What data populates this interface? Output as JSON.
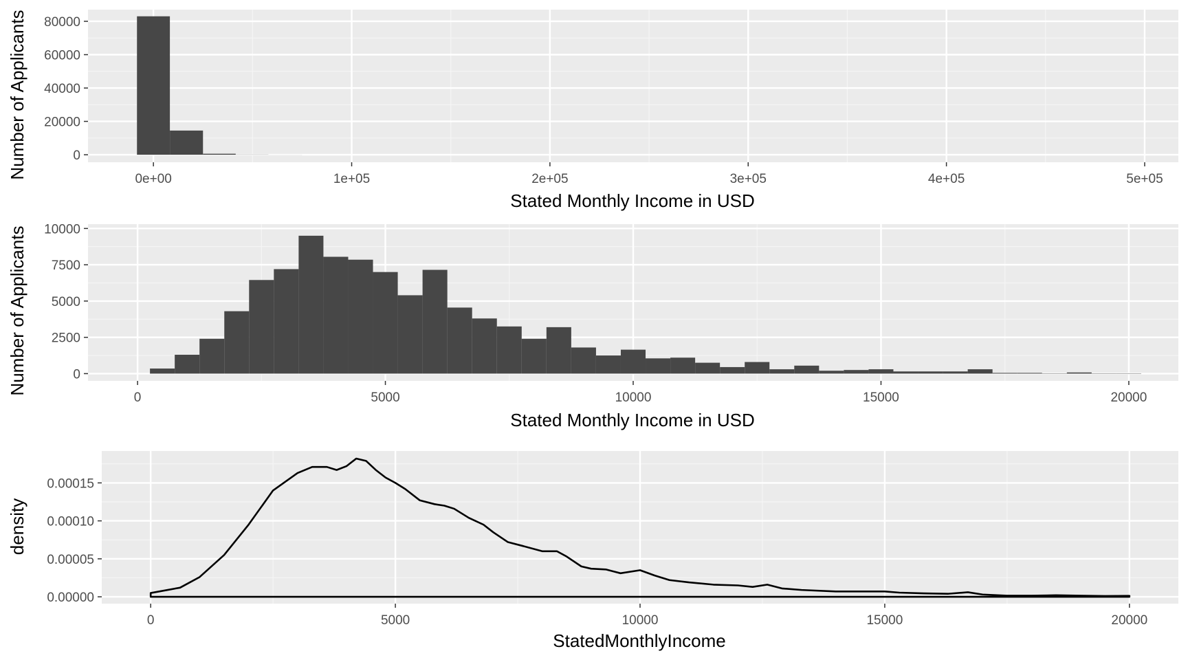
{
  "colors": {
    "panel": "#ebebeb",
    "grid_major": "#ffffff",
    "grid_minor": "#f5f5f5",
    "bar": "#474747",
    "line": "#000000",
    "tick_text": "#4d4d4d"
  },
  "chart_data": [
    {
      "type": "bar",
      "xlabel": "Stated Monthly Income in USD",
      "ylabel": "Number of Applicants",
      "xlim": [
        -33000,
        517000
      ],
      "ylim": [
        -4500,
        87000
      ],
      "x_ticks": [
        0,
        100000,
        200000,
        300000,
        400000,
        500000
      ],
      "x_tick_labels": [
        "0e+00",
        "1e+05",
        "2e+05",
        "3e+05",
        "4e+05",
        "5e+05"
      ],
      "y_ticks": [
        0,
        20000,
        40000,
        60000,
        80000
      ],
      "y_tick_labels": [
        "0",
        "20000",
        "40000",
        "60000",
        "80000"
      ],
      "bins": [
        {
          "x0": -8300,
          "x1": 8300,
          "value": 83000
        },
        {
          "x0": 8300,
          "x1": 25000,
          "value": 14500
        },
        {
          "x0": 25000,
          "x1": 41500,
          "value": 600
        },
        {
          "x0": 41500,
          "x1": 58000,
          "value": 100
        },
        {
          "x0": 58000,
          "x1": 75000,
          "value": 30
        }
      ]
    },
    {
      "type": "bar",
      "xlabel": "Stated Monthly Income in USD",
      "ylabel": "Number of Applicants",
      "xlim": [
        -1000,
        21000
      ],
      "ylim": [
        -500,
        10300
      ],
      "x_ticks": [
        0,
        5000,
        10000,
        15000,
        20000
      ],
      "x_tick_labels": [
        "0",
        "5000",
        "10000",
        "15000",
        "20000"
      ],
      "y_ticks": [
        0,
        2500,
        5000,
        7500,
        10000
      ],
      "y_tick_labels": [
        "0",
        "2500",
        "5000",
        "7500",
        "10000"
      ],
      "bin_start": 250,
      "bin_width": 500,
      "values": [
        350,
        1300,
        2400,
        4300,
        6450,
        7200,
        9500,
        8050,
        7850,
        7000,
        5400,
        7150,
        4550,
        3800,
        3250,
        2400,
        3200,
        1800,
        1250,
        1650,
        1050,
        1100,
        750,
        450,
        800,
        300,
        550,
        200,
        250,
        300,
        150,
        150,
        150,
        300,
        50,
        50,
        20,
        80,
        20,
        20
      ]
    },
    {
      "type": "area",
      "xlabel": "StatedMonthlyIncome",
      "ylabel": "density",
      "xlim": [
        -1000,
        21000
      ],
      "ylim": [
        -9e-06,
        0.000192
      ],
      "x_ticks": [
        0,
        5000,
        10000,
        15000,
        20000
      ],
      "x_tick_labels": [
        "0",
        "5000",
        "10000",
        "15000",
        "20000"
      ],
      "y_ticks": [
        0,
        5e-05,
        0.0001,
        0.00015
      ],
      "y_tick_labels": [
        "0.00000",
        "0.00005",
        "0.00010",
        "0.00015"
      ],
      "x": [
        0,
        300,
        600,
        1000,
        1500,
        2000,
        2500,
        3000,
        3300,
        3600,
        3800,
        4000,
        4200,
        4400,
        4600,
        4800,
        5000,
        5200,
        5500,
        5800,
        6000,
        6200,
        6500,
        6800,
        7000,
        7300,
        7600,
        8000,
        8300,
        8500,
        8800,
        9000,
        9300,
        9600,
        10000,
        10300,
        10600,
        11000,
        11500,
        12000,
        12300,
        12600,
        12900,
        13300,
        14000,
        14500,
        15000,
        15300,
        15800,
        16300,
        16700,
        17000,
        17500,
        18000,
        18500,
        19000,
        19500,
        20000
      ],
      "y": [
        5e-06,
        8.5e-06,
        1.2e-05,
        2.6e-05,
        5.5e-05,
        9.5e-05,
        0.00014,
        0.000163,
        0.000171,
        0.000171,
        0.000167,
        0.000172,
        0.000182,
        0.000179,
        0.000167,
        0.000157,
        0.00015,
        0.000142,
        0.000127,
        0.000122,
        0.00012,
        0.000116,
        0.000104,
        9.5e-05,
        8.5e-05,
        7.2e-05,
        6.7e-05,
        6e-05,
        6e-05,
        5.3e-05,
        4e-05,
        3.7e-05,
        3.6e-05,
        3.1e-05,
        3.5e-05,
        2.8e-05,
        2.2e-05,
        1.9e-05,
        1.6e-05,
        1.5e-05,
        1.3e-05,
        1.6e-05,
        1.1e-05,
        9e-06,
        7e-06,
        7e-06,
        7e-06,
        5.5e-06,
        4.5e-06,
        4e-06,
        6e-06,
        3e-06,
        1.5e-06,
        1.5e-06,
        2e-06,
        1.5e-06,
        1e-06,
        1.2e-06
      ]
    }
  ]
}
